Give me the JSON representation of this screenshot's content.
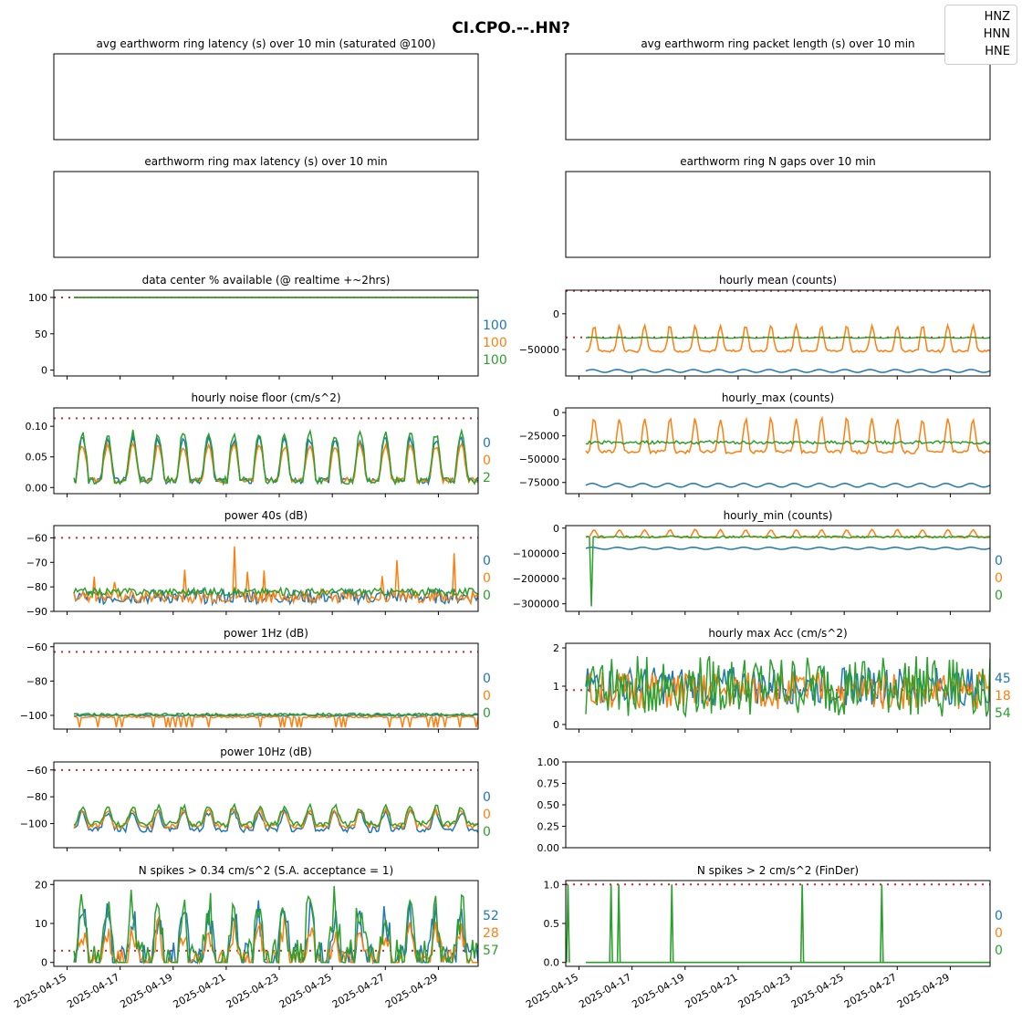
{
  "figure": {
    "title": "CI.CPO.--.HN?"
  },
  "colors": {
    "HNZ": "#1f77b4",
    "HNN": "#ff7f0e",
    "HNE": "#2ca02c",
    "threshold": "#d62728"
  },
  "legend": {
    "items": [
      "HNZ",
      "HNN",
      "HNE"
    ]
  },
  "xaxis": {
    "ticks": [
      "2025-04-15",
      "2025-04-17",
      "2025-04-19",
      "2025-04-21",
      "2025-04-23",
      "2025-04-25",
      "2025-04-27",
      "2025-04-29"
    ],
    "range": [
      "2025-04-14T12:00",
      "2025-04-30T12:00"
    ]
  },
  "chart_data": [
    {
      "id": "latency_avg",
      "type": "line",
      "title": "avg earthworm ring latency (s)   over 10 min (saturated @100)",
      "empty": true
    },
    {
      "id": "packet_len",
      "type": "line",
      "title": "avg earthworm ring packet length (s)   over 10 min",
      "empty": true
    },
    {
      "id": "latency_max",
      "type": "line",
      "title": "earthworm ring max latency (s)   over 10 min",
      "empty": true
    },
    {
      "id": "n_gaps",
      "type": "line",
      "title": "earthworm ring N gaps   over 10 min",
      "empty": true
    },
    {
      "id": "availability",
      "type": "line",
      "title": "data center % available (@ realtime +~2hrs)",
      "ylim": [
        -8,
        110
      ],
      "yticks": [
        0,
        50,
        100
      ],
      "threshold": 100,
      "series": [
        {
          "name": "HNZ",
          "base": 100,
          "amp": 0
        },
        {
          "name": "HNN",
          "base": 100,
          "amp": 0
        },
        {
          "name": "HNE",
          "base": 100,
          "amp": 0
        }
      ],
      "annotations": [
        "100",
        "100",
        "100"
      ]
    },
    {
      "id": "hourly_mean",
      "type": "line",
      "title": "hourly mean (counts)",
      "ylim": [
        -87000,
        33000
      ],
      "yticks": [
        0,
        -50000
      ],
      "ytick_labels": [
        "0",
        "−50000"
      ],
      "threshold": 32000,
      "threshold2": -33000,
      "series": [
        {
          "name": "HNZ",
          "base": -80000,
          "amp": 2000,
          "pattern": "sine"
        },
        {
          "name": "HNN",
          "base": -45000,
          "amp": 18000,
          "pattern": "spiky"
        },
        {
          "name": "HNE",
          "base": -33500,
          "amp": 600,
          "pattern": "sine"
        }
      ]
    },
    {
      "id": "noise_floor",
      "type": "line",
      "title": "hourly noise floor (cm/s^2)",
      "ylim": [
        -0.01,
        0.13
      ],
      "yticks": [
        0,
        0.05,
        0.1
      ],
      "ytick_labels": [
        "0.00",
        "0.05",
        "0.10"
      ],
      "threshold": 0.113,
      "series": [
        {
          "name": "HNZ",
          "base": 0.045,
          "amp": 0.042,
          "pattern": "diurnal"
        },
        {
          "name": "HNN",
          "base": 0.04,
          "amp": 0.035,
          "pattern": "diurnal"
        },
        {
          "name": "HNE",
          "base": 0.05,
          "amp": 0.048,
          "pattern": "diurnal"
        }
      ],
      "annotations": [
        "0",
        "0",
        "2"
      ]
    },
    {
      "id": "hourly_max",
      "type": "line",
      "title": "hourly_max (counts)",
      "ylim": [
        -87000,
        5000
      ],
      "yticks": [
        0,
        -25000,
        -50000,
        -75000
      ],
      "ytick_labels": [
        "0",
        "−25000",
        "−50000",
        "−75000"
      ],
      "series": [
        {
          "name": "HNZ",
          "base": -78000,
          "amp": 2000,
          "pattern": "sine"
        },
        {
          "name": "HNN",
          "base": -35000,
          "amp": 18000,
          "pattern": "spiky"
        },
        {
          "name": "HNE",
          "base": -32000,
          "amp": 1800,
          "pattern": "noise"
        }
      ]
    },
    {
      "id": "power_40s",
      "type": "line",
      "title": "power 40s (dB)",
      "ylim": [
        -90,
        -55
      ],
      "yticks": [
        -60,
        -70,
        -80,
        -90
      ],
      "ytick_labels": [
        "−60",
        "−70",
        "−80",
        "−90"
      ],
      "threshold": -60,
      "series": [
        {
          "name": "HNZ",
          "base": -84,
          "amp": 3,
          "pattern": "noise"
        },
        {
          "name": "HNN",
          "base": -84,
          "amp": 5,
          "pattern": "burst"
        },
        {
          "name": "HNE",
          "base": -82,
          "amp": 1.5,
          "pattern": "noise"
        }
      ],
      "annotations": [
        "0",
        "0",
        "0"
      ]
    },
    {
      "id": "hourly_min",
      "type": "line",
      "title": "hourly_min (counts)",
      "ylim": [
        -330000,
        10000
      ],
      "yticks": [
        0,
        -100000,
        -200000,
        -300000
      ],
      "ytick_labels": [
        "0",
        "−100000",
        "−200000",
        "−300000"
      ],
      "series": [
        {
          "name": "HNZ",
          "base": -80000,
          "amp": 4000,
          "pattern": "sine"
        },
        {
          "name": "HNN",
          "base": -30000,
          "amp": 15000,
          "pattern": "spiky"
        },
        {
          "name": "HNE",
          "base": -35000,
          "amp": 4000,
          "pattern": "noise",
          "dip": -310000
        }
      ],
      "annotations": [
        "0",
        "0",
        "0"
      ]
    },
    {
      "id": "power_1hz",
      "type": "line",
      "title": "power 1Hz (dB)",
      "ylim": [
        -108,
        -58
      ],
      "yticks": [
        -60,
        -80,
        -100
      ],
      "ytick_labels": [
        "−60",
        "−80",
        "−100"
      ],
      "threshold": -63,
      "series": [
        {
          "name": "HNZ",
          "base": -100,
          "amp": 0.5,
          "pattern": "noise"
        },
        {
          "name": "HNN",
          "base": -101,
          "amp": 6,
          "pattern": "drops"
        },
        {
          "name": "HNE",
          "base": -99.5,
          "amp": 0.8,
          "pattern": "noise"
        }
      ],
      "annotations": [
        "0",
        "0",
        "0"
      ]
    },
    {
      "id": "max_acc",
      "type": "line",
      "title": "hourly max Acc (cm/s^2)",
      "ylim": [
        -0.12,
        2.12
      ],
      "yticks": [
        0,
        1,
        2
      ],
      "threshold": 0.9,
      "series": [
        {
          "name": "HNZ",
          "base": 1.0,
          "amp": 0.5,
          "pattern": "noise"
        },
        {
          "name": "HNN",
          "base": 0.9,
          "amp": 0.5,
          "pattern": "noise"
        },
        {
          "name": "HNE",
          "base": 1.0,
          "amp": 0.8,
          "pattern": "noise"
        }
      ],
      "annotations": [
        "45",
        "18",
        "54"
      ]
    },
    {
      "id": "power_10hz",
      "type": "line",
      "title": "power 10Hz (dB)",
      "ylim": [
        -118,
        -54
      ],
      "yticks": [
        -60,
        -80,
        -100
      ],
      "ytick_labels": [
        "−60",
        "−80",
        "−100"
      ],
      "threshold": -60,
      "series": [
        {
          "name": "HNZ",
          "base": -98,
          "amp": 9,
          "pattern": "diurnal_db"
        },
        {
          "name": "HNN",
          "base": -96,
          "amp": 8,
          "pattern": "diurnal_db"
        },
        {
          "name": "HNE",
          "base": -94,
          "amp": 9,
          "pattern": "diurnal_db"
        }
      ],
      "annotations": [
        "0",
        "0",
        "0"
      ]
    },
    {
      "id": "blank",
      "type": "line",
      "title": "",
      "empty": true,
      "ylim": [
        0,
        1
      ],
      "yticks": [
        0,
        0.25,
        0.5,
        0.75,
        1
      ],
      "ytick_labels": [
        "0.00",
        "0.25",
        "0.50",
        "0.75",
        "1.00"
      ]
    },
    {
      "id": "spikes_034",
      "type": "line",
      "title": "N spikes > 0.34 cm/s^2 (S.A. acceptance = 1)",
      "ylim": [
        -1,
        21
      ],
      "yticks": [
        0,
        10,
        20
      ],
      "threshold": 3,
      "series": [
        {
          "name": "HNZ",
          "base": 6,
          "amp": 8,
          "pattern": "diurnal_count"
        },
        {
          "name": "HNN",
          "base": 4,
          "amp": 6,
          "pattern": "diurnal_count"
        },
        {
          "name": "HNE",
          "base": 7,
          "amp": 10,
          "pattern": "diurnal_count"
        }
      ],
      "annotations": [
        "52",
        "28",
        "57"
      ]
    },
    {
      "id": "spikes_2",
      "type": "line",
      "title": "N spikes > 2 cm/s^2 (FinDer)",
      "ylim": [
        -0.05,
        1.05
      ],
      "yticks": [
        0,
        0.5,
        1
      ],
      "ytick_labels": [
        "0.0",
        "0.5",
        "1.0"
      ],
      "threshold": 1,
      "series": [
        {
          "name": "HNZ",
          "base": 0,
          "amp": 0,
          "pattern": "flat"
        },
        {
          "name": "HNN",
          "base": 0,
          "amp": 0,
          "pattern": "flat"
        },
        {
          "name": "HNE",
          "base": 0,
          "amp": 0,
          "pattern": "events",
          "events": [
            "2025-04-14T14:00",
            "2025-04-16T05:00",
            "2025-04-16T12:00",
            "2025-04-18T12:00",
            "2025-04-23T10:00",
            "2025-04-26T10:00"
          ]
        }
      ],
      "annotations": [
        "0",
        "0",
        "0"
      ]
    }
  ]
}
